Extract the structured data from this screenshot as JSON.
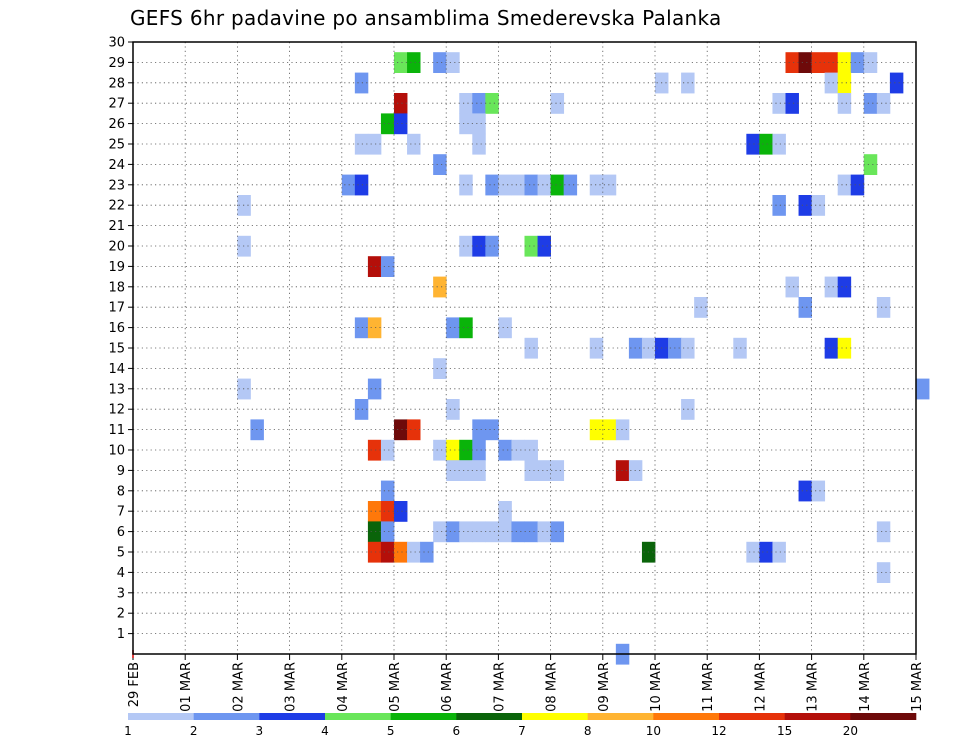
{
  "chart_data": {
    "type": "heatmap",
    "title": "GEFS 6hr padavine po ansamblima Smederevska Palanka",
    "x_tick_labels": [
      "29 FEB",
      "01 MAR",
      "02 MAR",
      "03 MAR",
      "04 MAR",
      "05 MAR",
      "06 MAR",
      "07 MAR",
      "08 MAR",
      "09 MAR",
      "10 MAR",
      "11 MAR",
      "12 MAR",
      "13 MAR",
      "14 MAR",
      "15 MAR"
    ],
    "x_unit": "days since 29 FEB (6-hourly steps of 0.25)",
    "xlim": [
      0,
      15
    ],
    "y_tick_labels": [
      "1",
      "2",
      "3",
      "4",
      "5",
      "6",
      "7",
      "8",
      "9",
      "10",
      "11",
      "12",
      "13",
      "14",
      "15",
      "16",
      "17",
      "18",
      "19",
      "20",
      "21",
      "22",
      "23",
      "24",
      "25",
      "26",
      "27",
      "28",
      "29",
      "30"
    ],
    "ylim": [
      0,
      30
    ],
    "grid": true,
    "legend": {
      "placement": "bottom",
      "colors": [
        "#b4c8f5",
        "#6e96f0",
        "#1e3ce6",
        "#69e65a",
        "#0ab40a",
        "#0a640a",
        "#ffff00",
        "#ffb432",
        "#ff780a",
        "#e6320a",
        "#b40f0a",
        "#6e0a0a"
      ],
      "labels": [
        "1",
        "2",
        "3",
        "4",
        "5",
        "6",
        "7",
        "8",
        "10",
        "12",
        "15",
        "20"
      ]
    },
    "levels": {
      "a": "#b4c8f5",
      "b": "#6e96f0",
      "c": "#1e3ce6",
      "d": "#69e65a",
      "e": "#0ab40a",
      "f": "#0a640a",
      "g": "#ffff00",
      "h": "#ffb432",
      "i": "#ff780a",
      "j": "#e6320a",
      "k": "#b40f0a",
      "l": "#6e0a0a"
    },
    "cells": [
      [
        29,
        5.0,
        "d"
      ],
      [
        29,
        5.25,
        "e"
      ],
      [
        29,
        5.75,
        "b"
      ],
      [
        29,
        6.0,
        "a"
      ],
      [
        29,
        12.5,
        "j"
      ],
      [
        29,
        12.75,
        "l"
      ],
      [
        29,
        13.0,
        "j"
      ],
      [
        29,
        13.25,
        "j"
      ],
      [
        29,
        13.5,
        "g"
      ],
      [
        29,
        13.75,
        "b"
      ],
      [
        29,
        14.0,
        "a"
      ],
      [
        28,
        4.25,
        "b"
      ],
      [
        28,
        10.0,
        "a"
      ],
      [
        28,
        10.5,
        "a"
      ],
      [
        28,
        13.25,
        "a"
      ],
      [
        28,
        13.5,
        "g"
      ],
      [
        28,
        14.5,
        "c"
      ],
      [
        27,
        5.0,
        "k"
      ],
      [
        27,
        6.25,
        "a"
      ],
      [
        27,
        6.5,
        "b"
      ],
      [
        27,
        6.75,
        "d"
      ],
      [
        27,
        8.0,
        "a"
      ],
      [
        27,
        12.25,
        "a"
      ],
      [
        27,
        12.5,
        "c"
      ],
      [
        27,
        13.5,
        "a"
      ],
      [
        27,
        14.0,
        "b"
      ],
      [
        27,
        14.25,
        "a"
      ],
      [
        26,
        4.75,
        "e"
      ],
      [
        26,
        5.0,
        "c"
      ],
      [
        26,
        6.25,
        "a"
      ],
      [
        26,
        6.5,
        "a"
      ],
      [
        25,
        4.25,
        "a"
      ],
      [
        25,
        4.5,
        "a"
      ],
      [
        25,
        5.25,
        "a"
      ],
      [
        25,
        6.5,
        "a"
      ],
      [
        25,
        11.75,
        "c"
      ],
      [
        25,
        12.0,
        "e"
      ],
      [
        25,
        12.25,
        "a"
      ],
      [
        24,
        5.75,
        "b"
      ],
      [
        24,
        14.0,
        "d"
      ],
      [
        23,
        4.0,
        "b"
      ],
      [
        23,
        4.25,
        "c"
      ],
      [
        23,
        6.25,
        "a"
      ],
      [
        23,
        6.75,
        "b"
      ],
      [
        23,
        7.0,
        "a"
      ],
      [
        23,
        7.25,
        "a"
      ],
      [
        23,
        7.5,
        "b"
      ],
      [
        23,
        7.75,
        "a"
      ],
      [
        23,
        8.0,
        "e"
      ],
      [
        23,
        8.25,
        "b"
      ],
      [
        23,
        8.75,
        "a"
      ],
      [
        23,
        9.0,
        "a"
      ],
      [
        23,
        13.5,
        "a"
      ],
      [
        23,
        13.75,
        "c"
      ],
      [
        22,
        2.0,
        "a"
      ],
      [
        22,
        12.25,
        "b"
      ],
      [
        22,
        12.75,
        "c"
      ],
      [
        22,
        13.0,
        "a"
      ],
      [
        20,
        2.0,
        "a"
      ],
      [
        20,
        6.25,
        "a"
      ],
      [
        20,
        6.5,
        "c"
      ],
      [
        20,
        6.75,
        "b"
      ],
      [
        20,
        7.5,
        "d"
      ],
      [
        20,
        7.75,
        "c"
      ],
      [
        19,
        4.5,
        "k"
      ],
      [
        19,
        4.75,
        "b"
      ],
      [
        18,
        5.75,
        "h"
      ],
      [
        18,
        12.5,
        "a"
      ],
      [
        18,
        13.25,
        "a"
      ],
      [
        18,
        13.5,
        "c"
      ],
      [
        17,
        10.75,
        "a"
      ],
      [
        17,
        12.75,
        "b"
      ],
      [
        17,
        14.25,
        "a"
      ],
      [
        16,
        4.25,
        "b"
      ],
      [
        16,
        4.5,
        "h"
      ],
      [
        16,
        6.0,
        "b"
      ],
      [
        16,
        6.25,
        "e"
      ],
      [
        16,
        7.0,
        "a"
      ],
      [
        15,
        7.5,
        "a"
      ],
      [
        15,
        8.75,
        "a"
      ],
      [
        15,
        9.5,
        "b"
      ],
      [
        15,
        9.75,
        "a"
      ],
      [
        15,
        10.0,
        "c"
      ],
      [
        15,
        10.25,
        "b"
      ],
      [
        15,
        10.5,
        "a"
      ],
      [
        15,
        11.5,
        "a"
      ],
      [
        15,
        13.25,
        "c"
      ],
      [
        15,
        13.5,
        "g"
      ],
      [
        14,
        5.75,
        "a"
      ],
      [
        13,
        2.0,
        "a"
      ],
      [
        13,
        4.5,
        "b"
      ],
      [
        13,
        15.0,
        "b"
      ],
      [
        12,
        4.25,
        "b"
      ],
      [
        12,
        6.0,
        "a"
      ],
      [
        12,
        10.5,
        "a"
      ],
      [
        11,
        2.25,
        "b"
      ],
      [
        11,
        5.0,
        "l"
      ],
      [
        11,
        5.25,
        "j"
      ],
      [
        11,
        6.5,
        "b"
      ],
      [
        11,
        6.75,
        "b"
      ],
      [
        11,
        8.75,
        "g"
      ],
      [
        11,
        9.0,
        "g"
      ],
      [
        11,
        9.25,
        "a"
      ],
      [
        10,
        4.5,
        "j"
      ],
      [
        10,
        4.75,
        "a"
      ],
      [
        10,
        5.75,
        "a"
      ],
      [
        10,
        6.0,
        "g"
      ],
      [
        10,
        6.25,
        "e"
      ],
      [
        10,
        6.5,
        "b"
      ],
      [
        10,
        7.0,
        "b"
      ],
      [
        10,
        7.25,
        "a"
      ],
      [
        10,
        7.5,
        "a"
      ],
      [
        9,
        6.0,
        "a"
      ],
      [
        9,
        6.25,
        "a"
      ],
      [
        9,
        6.5,
        "a"
      ],
      [
        9,
        7.5,
        "a"
      ],
      [
        9,
        7.75,
        "a"
      ],
      [
        9,
        8.0,
        "a"
      ],
      [
        9,
        9.25,
        "k"
      ],
      [
        9,
        9.5,
        "a"
      ],
      [
        8,
        4.75,
        "b"
      ],
      [
        8,
        12.75,
        "c"
      ],
      [
        8,
        13.0,
        "a"
      ],
      [
        7,
        4.5,
        "i"
      ],
      [
        7,
        4.75,
        "j"
      ],
      [
        7,
        5.0,
        "c"
      ],
      [
        7,
        7.0,
        "a"
      ],
      [
        6,
        4.5,
        "f"
      ],
      [
        6,
        4.75,
        "b"
      ],
      [
        6,
        5.75,
        "a"
      ],
      [
        6,
        6.0,
        "b"
      ],
      [
        6,
        6.25,
        "a"
      ],
      [
        6,
        6.5,
        "a"
      ],
      [
        6,
        6.75,
        "a"
      ],
      [
        6,
        7.0,
        "a"
      ],
      [
        6,
        7.25,
        "b"
      ],
      [
        6,
        7.5,
        "b"
      ],
      [
        6,
        7.75,
        "a"
      ],
      [
        6,
        8.0,
        "b"
      ],
      [
        6,
        14.25,
        "a"
      ],
      [
        5,
        4.5,
        "j"
      ],
      [
        5,
        4.75,
        "k"
      ],
      [
        5,
        5.0,
        "i"
      ],
      [
        5,
        5.25,
        "a"
      ],
      [
        5,
        5.5,
        "b"
      ],
      [
        5,
        9.75,
        "f"
      ],
      [
        5,
        11.75,
        "a"
      ],
      [
        5,
        12.0,
        "c"
      ],
      [
        5,
        12.25,
        "a"
      ],
      [
        4,
        14.25,
        "a"
      ],
      [
        0,
        9.25,
        "b"
      ]
    ]
  }
}
